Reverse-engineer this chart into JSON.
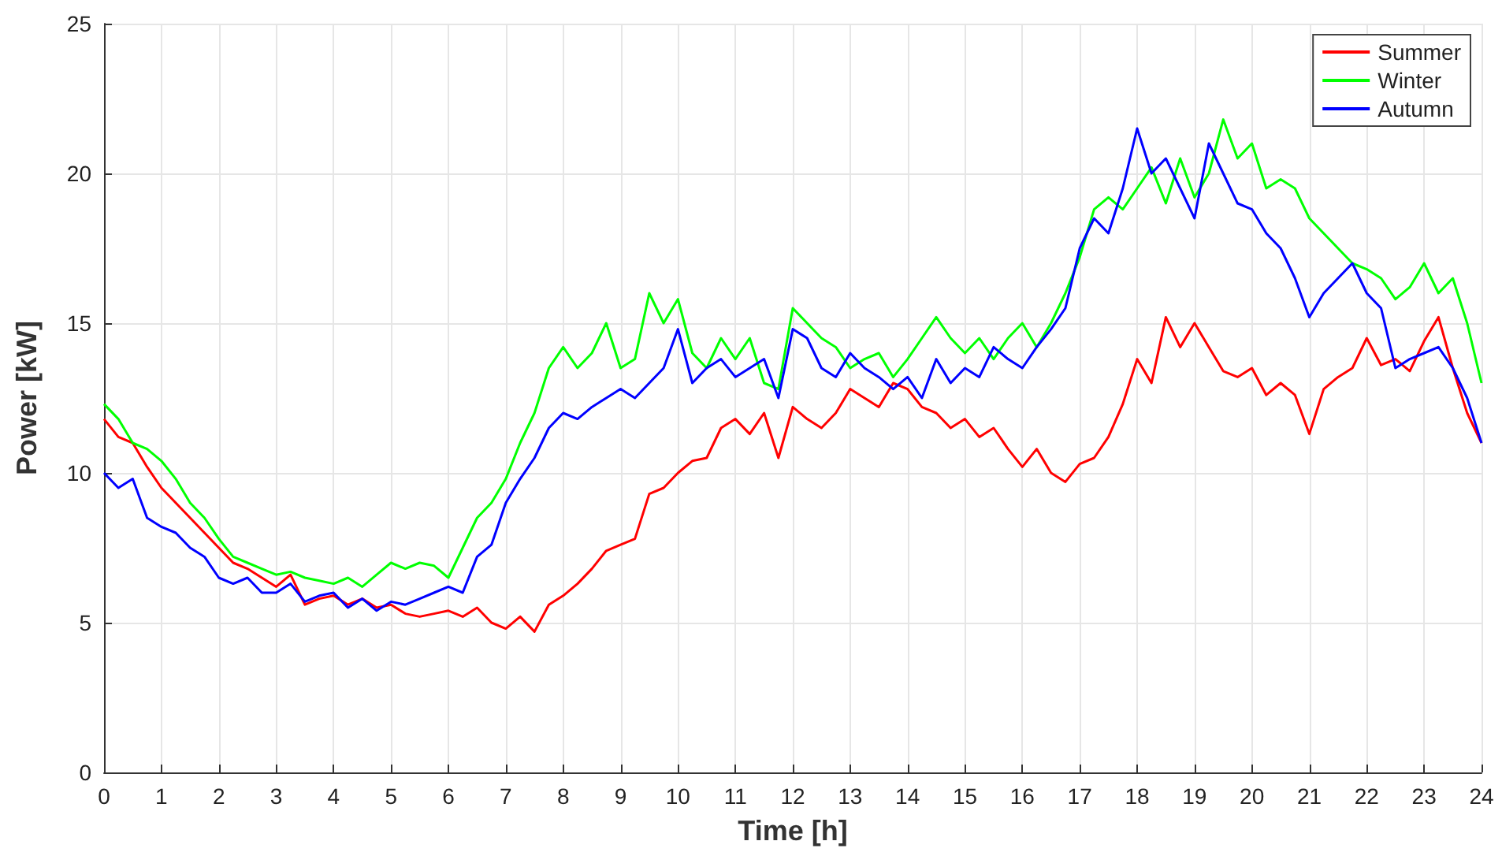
{
  "chart_data": {
    "type": "line",
    "xlabel": "Time [h]",
    "ylabel": "Power [kW]",
    "x": [
      0,
      0.25,
      0.5,
      0.75,
      1,
      1.25,
      1.5,
      1.75,
      2,
      2.25,
      2.5,
      2.75,
      3,
      3.25,
      3.5,
      3.75,
      4,
      4.25,
      4.5,
      4.75,
      5,
      5.25,
      5.5,
      5.75,
      6,
      6.25,
      6.5,
      6.75,
      7,
      7.25,
      7.5,
      7.75,
      8,
      8.25,
      8.5,
      8.75,
      9,
      9.25,
      9.5,
      9.75,
      10,
      10.25,
      10.5,
      10.75,
      11,
      11.25,
      11.5,
      11.75,
      12,
      12.25,
      12.5,
      12.75,
      13,
      13.25,
      13.5,
      13.75,
      14,
      14.25,
      14.5,
      14.75,
      15,
      15.25,
      15.5,
      15.75,
      16,
      16.25,
      16.5,
      16.75,
      17,
      17.25,
      17.5,
      17.75,
      18,
      18.25,
      18.5,
      18.75,
      19,
      19.25,
      19.5,
      19.75,
      20,
      20.25,
      20.5,
      20.75,
      21,
      21.25,
      21.5,
      21.75,
      22,
      22.25,
      22.5,
      22.75,
      23,
      23.25,
      23.5,
      23.75,
      24
    ],
    "series": [
      {
        "name": "Summer",
        "color": "#ff0000",
        "values": [
          11.8,
          11.2,
          11.0,
          10.2,
          9.5,
          9.0,
          8.5,
          8.0,
          7.5,
          7.0,
          6.8,
          6.5,
          6.2,
          6.6,
          5.6,
          5.8,
          5.9,
          5.6,
          5.8,
          5.5,
          5.6,
          5.3,
          5.2,
          5.3,
          5.4,
          5.2,
          5.5,
          5.0,
          4.8,
          5.2,
          4.7,
          5.6,
          5.9,
          6.3,
          6.8,
          7.4,
          7.6,
          7.8,
          9.3,
          9.5,
          10.0,
          10.4,
          10.5,
          11.5,
          11.8,
          11.3,
          12.0,
          10.5,
          12.2,
          11.8,
          11.5,
          12.0,
          12.8,
          12.5,
          12.2,
          13.0,
          12.8,
          12.2,
          12.0,
          11.5,
          11.8,
          11.2,
          11.5,
          10.8,
          10.2,
          10.8,
          10.0,
          9.7,
          10.3,
          10.5,
          11.2,
          12.3,
          13.8,
          13.0,
          15.2,
          14.2,
          15.0,
          14.2,
          13.4,
          13.2,
          13.5,
          12.6,
          13.0,
          12.6,
          11.3,
          12.8,
          13.2,
          13.5,
          14.5,
          13.6,
          13.8,
          13.4,
          14.4,
          15.2,
          13.5,
          12.0,
          11.0
        ]
      },
      {
        "name": "Winter",
        "color": "#00ff00",
        "values": [
          12.3,
          11.8,
          11.0,
          10.8,
          10.4,
          9.8,
          9.0,
          8.5,
          7.8,
          7.2,
          7.0,
          6.8,
          6.6,
          6.7,
          6.5,
          6.4,
          6.3,
          6.5,
          6.2,
          6.6,
          7.0,
          6.8,
          7.0,
          6.9,
          6.5,
          7.5,
          8.5,
          9.0,
          9.8,
          11.0,
          12.0,
          13.5,
          14.2,
          13.5,
          14.0,
          15.0,
          13.5,
          13.8,
          16.0,
          15.0,
          15.8,
          14.0,
          13.5,
          14.5,
          13.8,
          14.5,
          13.0,
          12.8,
          15.5,
          15.0,
          14.5,
          14.2,
          13.5,
          13.8,
          14.0,
          13.2,
          13.8,
          14.5,
          15.2,
          14.5,
          14.0,
          14.5,
          13.8,
          14.5,
          15.0,
          14.2,
          15.0,
          16.0,
          17.2,
          18.8,
          19.2,
          18.8,
          19.5,
          20.2,
          19.0,
          20.5,
          19.2,
          20.0,
          21.8,
          20.5,
          21.0,
          19.5,
          19.8,
          19.5,
          18.5,
          18.0,
          17.5,
          17.0,
          16.8,
          16.5,
          15.8,
          16.2,
          17.0,
          16.0,
          16.5,
          15.0,
          13.0
        ]
      },
      {
        "name": "Autumn",
        "color": "#0000ff",
        "values": [
          10.0,
          9.5,
          9.8,
          8.5,
          8.2,
          8.0,
          7.5,
          7.2,
          6.5,
          6.3,
          6.5,
          6.0,
          6.0,
          6.3,
          5.7,
          5.9,
          6.0,
          5.5,
          5.8,
          5.4,
          5.7,
          5.6,
          5.8,
          6.0,
          6.2,
          6.0,
          7.2,
          7.6,
          9.0,
          9.8,
          10.5,
          11.5,
          12.0,
          11.8,
          12.2,
          12.5,
          12.8,
          12.5,
          13.0,
          13.5,
          14.8,
          13.0,
          13.5,
          13.8,
          13.2,
          13.5,
          13.8,
          12.5,
          14.8,
          14.5,
          13.5,
          13.2,
          14.0,
          13.5,
          13.2,
          12.8,
          13.2,
          12.5,
          13.8,
          13.0,
          13.5,
          13.2,
          14.2,
          13.8,
          13.5,
          14.2,
          14.8,
          15.5,
          17.5,
          18.5,
          18.0,
          19.5,
          21.5,
          20.0,
          20.5,
          19.5,
          18.5,
          21.0,
          20.0,
          19.0,
          18.8,
          18.0,
          17.5,
          16.5,
          15.2,
          16.0,
          16.5,
          17.0,
          16.0,
          15.5,
          13.5,
          13.8,
          14.0,
          14.2,
          13.5,
          12.5,
          11.0
        ]
      }
    ],
    "xlim": [
      0,
      24
    ],
    "xticks": [
      0,
      1,
      2,
      3,
      4,
      5,
      6,
      7,
      8,
      9,
      10,
      11,
      12,
      13,
      14,
      15,
      16,
      17,
      18,
      19,
      20,
      21,
      22,
      23,
      24
    ],
    "ylim": [
      0,
      25
    ],
    "yticks": [
      0,
      5,
      10,
      15,
      20,
      25
    ],
    "grid": true,
    "legend": "top right",
    "marker": "none",
    "line_style": "solid"
  }
}
